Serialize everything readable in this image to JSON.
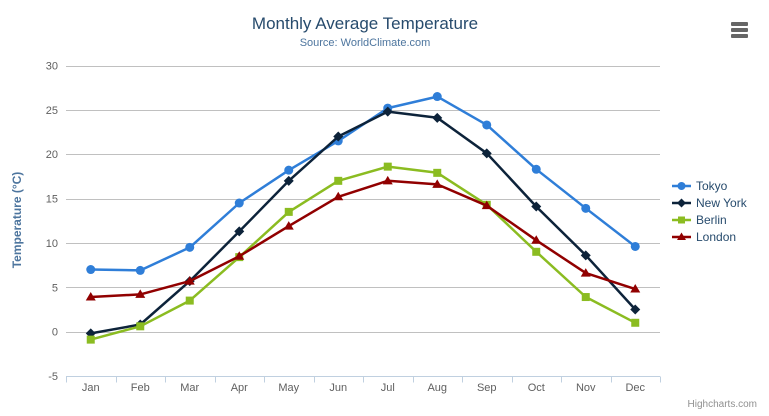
{
  "chart_data": {
    "type": "line",
    "title": "Monthly Average Temperature",
    "subtitle": "Source: WorldClimate.com",
    "xlabel": "",
    "ylabel": "Temperature (°C)",
    "categories": [
      "Jan",
      "Feb",
      "Mar",
      "Apr",
      "May",
      "Jun",
      "Jul",
      "Aug",
      "Sep",
      "Oct",
      "Nov",
      "Dec"
    ],
    "ylim": [
      -5,
      30
    ],
    "yticks": [
      -5,
      0,
      5,
      10,
      15,
      20,
      25,
      30
    ],
    "grid": true,
    "legend_position": "right",
    "series": [
      {
        "name": "Tokyo",
        "color": "#2f7ed8",
        "marker": "circle",
        "values": [
          7.0,
          6.9,
          9.5,
          14.5,
          18.2,
          21.5,
          25.2,
          26.5,
          23.3,
          18.3,
          13.9,
          9.6
        ]
      },
      {
        "name": "New York",
        "color": "#0d233a",
        "marker": "diamond",
        "values": [
          -0.2,
          0.8,
          5.7,
          11.3,
          17.0,
          22.0,
          24.8,
          24.1,
          20.1,
          14.1,
          8.6,
          2.5
        ]
      },
      {
        "name": "Berlin",
        "color": "#8bbc21",
        "marker": "square",
        "values": [
          -0.9,
          0.6,
          3.5,
          8.4,
          13.5,
          17.0,
          18.6,
          17.9,
          14.3,
          9.0,
          3.9,
          1.0
        ]
      },
      {
        "name": "London",
        "color": "#910000",
        "marker": "triangle",
        "values": [
          3.9,
          4.2,
          5.7,
          8.5,
          11.9,
          15.2,
          17.0,
          16.6,
          14.2,
          10.3,
          6.6,
          4.8
        ]
      }
    ]
  },
  "colors": {
    "title": "#274b6d",
    "subtitle": "#4d759e",
    "axis_title": "#4d759e",
    "axis_labels": "#606060",
    "grid_line": "#c0c0c0",
    "axis_line": "#c0d0e0",
    "legend_text": "#274b6d",
    "credits_text": "#909090",
    "menu_icon": "#666666"
  },
  "credits": {
    "label": "Highcharts.com"
  }
}
